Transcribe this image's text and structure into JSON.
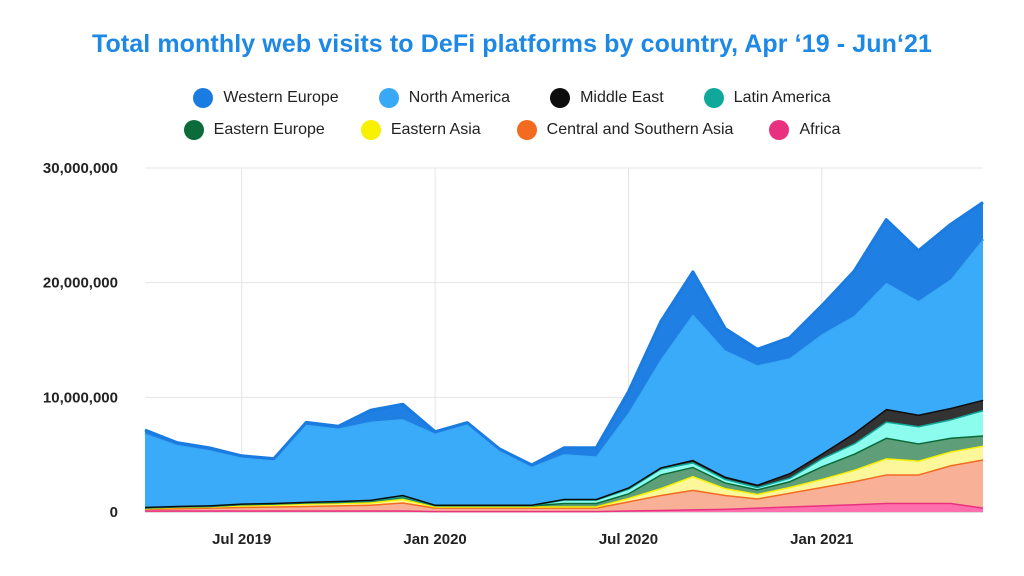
{
  "header": {
    "title": "Total monthly web visits to DeFi platforms by country, Apr ‘19 - Jun‘21"
  },
  "legend": {
    "row1": [
      {
        "label": "Western Europe",
        "color": "#1a7be0"
      },
      {
        "label": "North America",
        "color": "#3aa9f5"
      },
      {
        "label": "Middle East",
        "color": "#0d0d0d"
      },
      {
        "label": "Latin America",
        "color": "#10a89a"
      }
    ],
    "row2": [
      {
        "label": "Eastern Europe",
        "color": "#0b6b3a"
      },
      {
        "label": "Eastern Asia",
        "color": "#f7f000"
      },
      {
        "label": "Central and Southern Asia",
        "color": "#f26b21"
      },
      {
        "label": "Africa",
        "color": "#e8327f"
      }
    ]
  },
  "chart_data": {
    "type": "area",
    "stacked": true,
    "title": "Total monthly web visits to DeFi platforms by country, Apr ‘19 - Jun‘21",
    "ylim": [
      0,
      30000000
    ],
    "yticks": [
      {
        "value": 0,
        "label": "0"
      },
      {
        "value": 10000000,
        "label": "10,000,000"
      },
      {
        "value": 20000000,
        "label": "20,000,000"
      },
      {
        "value": 30000000,
        "label": "30,000,000"
      }
    ],
    "xticks": [
      {
        "month_index": 3,
        "label": "Jul 2019"
      },
      {
        "month_index": 9,
        "label": "Jan 2020"
      },
      {
        "month_index": 15,
        "label": "Jul 2020"
      },
      {
        "month_index": 21,
        "label": "Jan 2021"
      }
    ],
    "x": [
      "Apr 2019",
      "May 2019",
      "Jun 2019",
      "Jul 2019",
      "Aug 2019",
      "Sep 2019",
      "Oct 2019",
      "Nov 2019",
      "Dec 2019",
      "Jan 2020",
      "Feb 2020",
      "Mar 2020",
      "Apr 2020",
      "May 2020",
      "Jun 2020",
      "Jul 2020",
      "Aug 2020",
      "Sep 2020",
      "Oct 2020",
      "Nov 2020",
      "Dec 2020",
      "Jan 2021",
      "Feb 2021",
      "Mar 2021",
      "Apr 2021",
      "May 2021",
      "Jun 2021"
    ],
    "grid": true,
    "series": [
      {
        "name": "Africa",
        "color": "#ff6fae",
        "values": [
          150000,
          150000,
          150000,
          150000,
          150000,
          150000,
          150000,
          150000,
          150000,
          100000,
          100000,
          100000,
          100000,
          100000,
          100000,
          150000,
          200000,
          250000,
          300000,
          400000,
          500000,
          600000,
          700000,
          800000,
          800000,
          800000,
          400000
        ]
      },
      {
        "name": "Central and Southern Asia",
        "color": "#f8b096",
        "values": [
          150000,
          200000,
          250000,
          300000,
          350000,
          400000,
          450000,
          500000,
          700000,
          300000,
          300000,
          300000,
          300000,
          300000,
          300000,
          800000,
          1300000,
          1700000,
          1200000,
          800000,
          1200000,
          1600000,
          2000000,
          2500000,
          2500000,
          3300000,
          4200000
        ]
      },
      {
        "name": "Eastern Asia",
        "color": "#fbf79a",
        "values": [
          50000,
          100000,
          100000,
          150000,
          150000,
          200000,
          200000,
          200000,
          300000,
          100000,
          100000,
          100000,
          100000,
          100000,
          100000,
          300000,
          600000,
          1200000,
          600000,
          400000,
          500000,
          700000,
          1000000,
          1400000,
          1200000,
          1200000,
          1200000
        ]
      },
      {
        "name": "Eastern Europe",
        "color": "#5e9e78",
        "values": [
          50000,
          50000,
          50000,
          100000,
          100000,
          100000,
          100000,
          150000,
          200000,
          100000,
          100000,
          100000,
          100000,
          300000,
          300000,
          400000,
          1200000,
          800000,
          500000,
          400000,
          500000,
          1100000,
          1400000,
          1800000,
          1500000,
          1200000,
          900000
        ]
      },
      {
        "name": "Latin America",
        "color": "#8cfcee",
        "values": [
          20000,
          20000,
          20000,
          20000,
          30000,
          30000,
          30000,
          30000,
          50000,
          20000,
          20000,
          20000,
          20000,
          300000,
          300000,
          400000,
          500000,
          400000,
          300000,
          200000,
          300000,
          700000,
          900000,
          1400000,
          1500000,
          1600000,
          2200000
        ]
      },
      {
        "name": "Middle East",
        "color": "#333333",
        "values": [
          30000,
          30000,
          30000,
          30000,
          30000,
          30000,
          50000,
          50000,
          100000,
          30000,
          30000,
          30000,
          30000,
          50000,
          50000,
          100000,
          100000,
          200000,
          200000,
          200000,
          400000,
          400000,
          900000,
          1100000,
          1000000,
          1000000,
          900000
        ]
      },
      {
        "name": "North America",
        "color": "#3aabf8",
        "values": [
          6400000,
          5300000,
          4800000,
          4000000,
          3700000,
          6700000,
          6300000,
          6800000,
          6600000,
          6200000,
          7000000,
          4700000,
          3300000,
          3900000,
          3700000,
          6500000,
          9400000,
          12700000,
          11000000,
          10400000,
          10000000,
          10400000,
          10200000,
          11000000,
          9900000,
          11200000,
          14000000
        ]
      },
      {
        "name": "Western Europe",
        "color": "#1f7fe2",
        "values": [
          300000,
          200000,
          200000,
          150000,
          150000,
          200000,
          200000,
          1000000,
          1300000,
          150000,
          150000,
          150000,
          150000,
          550000,
          750000,
          1850000,
          3300000,
          3700000,
          1900000,
          1400000,
          1800000,
          2500000,
          3900000,
          5500000,
          4400000,
          4800000,
          3200000
        ]
      }
    ]
  }
}
